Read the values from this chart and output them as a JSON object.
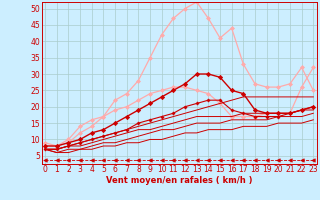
{
  "xlabel": "Vent moyen/en rafales ( km/h )",
  "background_color": "#cceeff",
  "grid_color": "#aacccc",
  "x_ticks": [
    0,
    1,
    2,
    3,
    4,
    5,
    6,
    7,
    8,
    9,
    10,
    11,
    12,
    13,
    14,
    15,
    16,
    17,
    18,
    19,
    20,
    21,
    22,
    23
  ],
  "y_ticks": [
    5,
    10,
    15,
    20,
    25,
    30,
    35,
    40,
    45,
    50
  ],
  "xlim": [
    -0.3,
    23.3
  ],
  "ylim": [
    2.5,
    52
  ],
  "tick_fontsize": 5.5,
  "xlabel_fontsize": 6,
  "series": [
    {
      "x": [
        0,
        1,
        2,
        3,
        4,
        5,
        6,
        7,
        8,
        9,
        10,
        11,
        12,
        13,
        14,
        15,
        16,
        17,
        18,
        19,
        20,
        21,
        22,
        23
      ],
      "y": [
        9,
        8,
        9,
        12,
        14,
        17,
        22,
        24,
        28,
        35,
        42,
        47,
        50,
        52,
        47,
        41,
        44,
        33,
        27,
        26,
        26,
        27,
        32,
        25
      ],
      "color": "#ffaaaa",
      "linewidth": 0.9,
      "marker": "D",
      "markersize": 2.0,
      "linestyle": "-"
    },
    {
      "x": [
        0,
        1,
        2,
        3,
        4,
        5,
        6,
        7,
        8,
        9,
        10,
        11,
        12,
        13,
        14,
        15,
        16,
        17,
        18,
        19,
        20,
        21,
        22,
        23
      ],
      "y": [
        8,
        8,
        10,
        14,
        16,
        17,
        19,
        20,
        22,
        24,
        25,
        26,
        26,
        25,
        24,
        21,
        17,
        17,
        17,
        18,
        18,
        18,
        26,
        32
      ],
      "color": "#ffaaaa",
      "linewidth": 0.9,
      "marker": "D",
      "markersize": 2.0,
      "linestyle": "-"
    },
    {
      "x": [
        0,
        1,
        2,
        3,
        4,
        5,
        6,
        7,
        8,
        9,
        10,
        11,
        12,
        13,
        14,
        15,
        16,
        17,
        18,
        19,
        20,
        21,
        22,
        23
      ],
      "y": [
        8,
        8,
        9,
        10,
        12,
        13,
        15,
        17,
        19,
        21,
        23,
        25,
        27,
        30,
        30,
        29,
        25,
        24,
        19,
        18,
        18,
        18,
        19,
        20
      ],
      "color": "#cc0000",
      "linewidth": 1.0,
      "marker": "D",
      "markersize": 2.2,
      "linestyle": "-"
    },
    {
      "x": [
        0,
        1,
        2,
        3,
        4,
        5,
        6,
        7,
        8,
        9,
        10,
        11,
        12,
        13,
        14,
        15,
        16,
        17,
        18,
        19,
        20,
        21,
        22,
        23
      ],
      "y": [
        7,
        7,
        8,
        9,
        10,
        11,
        12,
        13,
        15,
        16,
        17,
        18,
        20,
        21,
        22,
        22,
        19,
        18,
        17,
        17,
        17,
        18,
        19,
        20
      ],
      "color": "#cc0000",
      "linewidth": 0.8,
      "marker": "P",
      "markersize": 2.0,
      "linestyle": "-"
    },
    {
      "x": [
        0,
        1,
        2,
        3,
        4,
        5,
        6,
        7,
        8,
        9,
        10,
        11,
        12,
        13,
        14,
        15,
        16,
        17,
        18,
        19,
        20,
        21,
        22,
        23
      ],
      "y": [
        7,
        7,
        8,
        9,
        10,
        11,
        12,
        13,
        14,
        15,
        16,
        17,
        18,
        19,
        20,
        21,
        22,
        23,
        23,
        23,
        23,
        23,
        23,
        23
      ],
      "color": "#cc0000",
      "linewidth": 0.7,
      "marker": null,
      "linestyle": "-"
    },
    {
      "x": [
        0,
        1,
        2,
        3,
        4,
        5,
        6,
        7,
        8,
        9,
        10,
        11,
        12,
        13,
        14,
        15,
        16,
        17,
        18,
        19,
        20,
        21,
        22,
        23
      ],
      "y": [
        7,
        7,
        8,
        8,
        9,
        10,
        11,
        12,
        13,
        13,
        14,
        15,
        16,
        17,
        17,
        17,
        17,
        18,
        18,
        18,
        18,
        18,
        19,
        19
      ],
      "color": "#cc0000",
      "linewidth": 0.7,
      "marker": null,
      "linestyle": "-"
    },
    {
      "x": [
        0,
        1,
        2,
        3,
        4,
        5,
        6,
        7,
        8,
        9,
        10,
        11,
        12,
        13,
        14,
        15,
        16,
        17,
        18,
        19,
        20,
        21,
        22,
        23
      ],
      "y": [
        7,
        6,
        7,
        7,
        8,
        9,
        9,
        10,
        11,
        12,
        13,
        13,
        14,
        15,
        15,
        15,
        16,
        16,
        16,
        16,
        17,
        17,
        17,
        18
      ],
      "color": "#cc0000",
      "linewidth": 0.7,
      "marker": null,
      "linestyle": "-"
    },
    {
      "x": [
        0,
        1,
        2,
        3,
        4,
        5,
        6,
        7,
        8,
        9,
        10,
        11,
        12,
        13,
        14,
        15,
        16,
        17,
        18,
        19,
        20,
        21,
        22,
        23
      ],
      "y": [
        7,
        6,
        6,
        7,
        7,
        8,
        8,
        9,
        9,
        10,
        10,
        11,
        12,
        12,
        13,
        13,
        13,
        14,
        14,
        14,
        15,
        15,
        15,
        16
      ],
      "color": "#cc0000",
      "linewidth": 0.7,
      "marker": null,
      "linestyle": "-"
    },
    {
      "x": [
        0,
        1,
        2,
        3,
        4,
        5,
        6,
        7,
        8,
        9,
        10,
        11,
        12,
        13,
        14,
        15,
        16,
        17,
        18,
        19,
        20,
        21,
        22,
        23
      ],
      "y": [
        3.8,
        3.8,
        3.8,
        3.8,
        3.8,
        3.8,
        3.8,
        3.8,
        3.8,
        3.8,
        3.8,
        3.8,
        3.8,
        3.8,
        3.8,
        3.8,
        3.8,
        3.8,
        3.8,
        3.8,
        3.8,
        3.8,
        3.8,
        3.8
      ],
      "color": "#cc0000",
      "linewidth": 0.6,
      "marker": "<",
      "markersize": 2.5,
      "linestyle": "--"
    }
  ]
}
